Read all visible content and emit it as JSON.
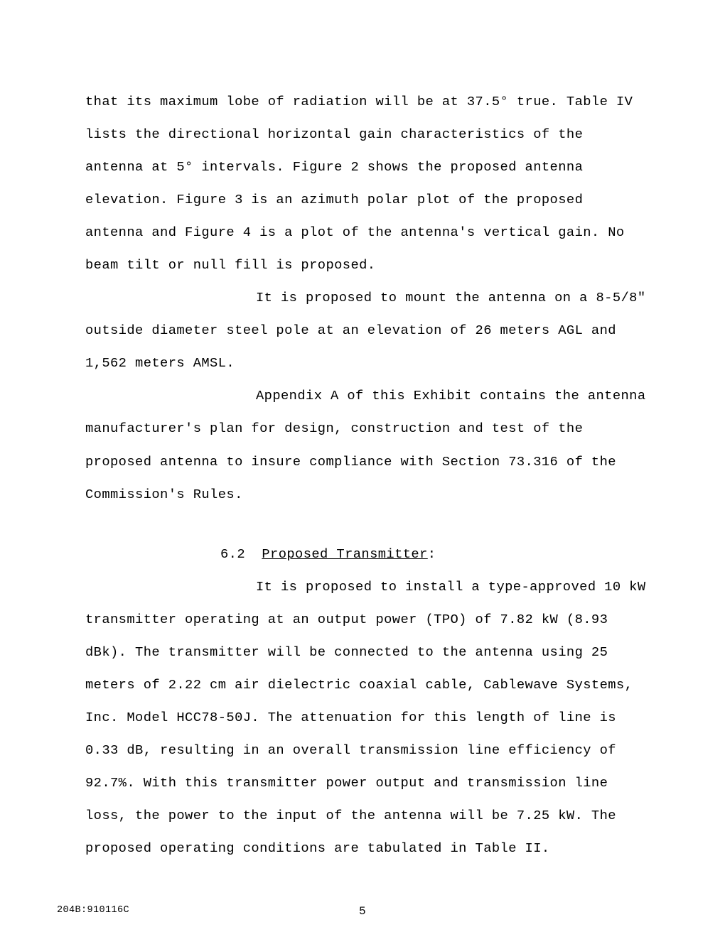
{
  "para1": "that its maximum lobe of radiation will be at 37.5° true. Table IV lists the directional horizontal gain characteristics of the antenna at 5° intervals.  Figure 2 shows the proposed antenna elevation.  Figure 3 is an azimuth polar plot of the proposed antenna and Figure 4 is a plot of the antenna's vertical gain.  No beam tilt or null fill is proposed.",
  "para2": "It is proposed to mount the antenna on a 8-5/8\" outside diameter steel pole at an elevation of 26 meters AGL and 1,562 meters AMSL.",
  "para3": "Appendix A of this Exhibit contains the antenna manufacturer's plan for design, construction and test of the proposed antenna to insure compliance with Section 73.316 of the Commission's Rules.",
  "section_num": "6.2",
  "section_name": "Proposed Transmitter",
  "para4": "It is proposed to install a type-approved 10 kW transmitter operating at an output power (TPO) of 7.82 kW (8.93 dBk).  The transmitter will be connected to the antenna using 25 meters of 2.22 cm air dielectric coaxial cable, Cablewave Systems, Inc. Model HCC78-50J.  The attenuation for this length of line is 0.33 dB, resulting in an overall transmission line efficiency of 92.7%.  With this transmitter power output and transmission line loss, the power to the input of the antenna will be 7.25 kW.  The proposed operating conditions are tabulated in Table II.",
  "footer_left": "204B:910116C",
  "footer_center": "5"
}
